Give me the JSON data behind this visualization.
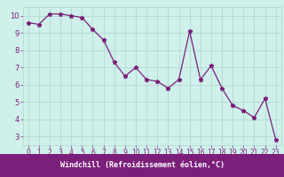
{
  "x": [
    0,
    1,
    2,
    3,
    4,
    5,
    6,
    7,
    8,
    9,
    10,
    11,
    12,
    13,
    14,
    15,
    16,
    17,
    18,
    19,
    20,
    21,
    22,
    23
  ],
  "y": [
    9.6,
    9.5,
    10.1,
    10.1,
    10.0,
    9.9,
    9.2,
    8.6,
    7.3,
    6.5,
    7.0,
    6.3,
    6.2,
    5.8,
    6.3,
    9.1,
    6.3,
    7.1,
    5.8,
    4.8,
    4.5,
    4.1,
    5.2,
    2.8
  ],
  "line_color": "#7b1f7b",
  "marker": "*",
  "bg_color": "#cff0eb",
  "grid_color": "#aed4ce",
  "xlabel": "Windchill (Refroidissement éolien,°C)",
  "xlabel_color": "#ffffff",
  "xlabel_bg": "#7b1f7b",
  "ylim": [
    2.5,
    10.5
  ],
  "xlim": [
    -0.5,
    23.5
  ],
  "yticks": [
    3,
    4,
    5,
    6,
    7,
    8,
    9,
    10
  ],
  "xtick_labels": [
    "0",
    "1",
    "2",
    "3",
    "4",
    "5",
    "6",
    "7",
    "8",
    "9",
    "10",
    "11",
    "12",
    "13",
    "14",
    "15",
    "16",
    "17",
    "18",
    "19",
    "20",
    "21",
    "22",
    "23"
  ],
  "tick_color": "#7b1f7b",
  "axis_fontsize": 5.5,
  "ytick_fontsize": 6.0,
  "marker_size": 3.5,
  "line_width": 0.9
}
